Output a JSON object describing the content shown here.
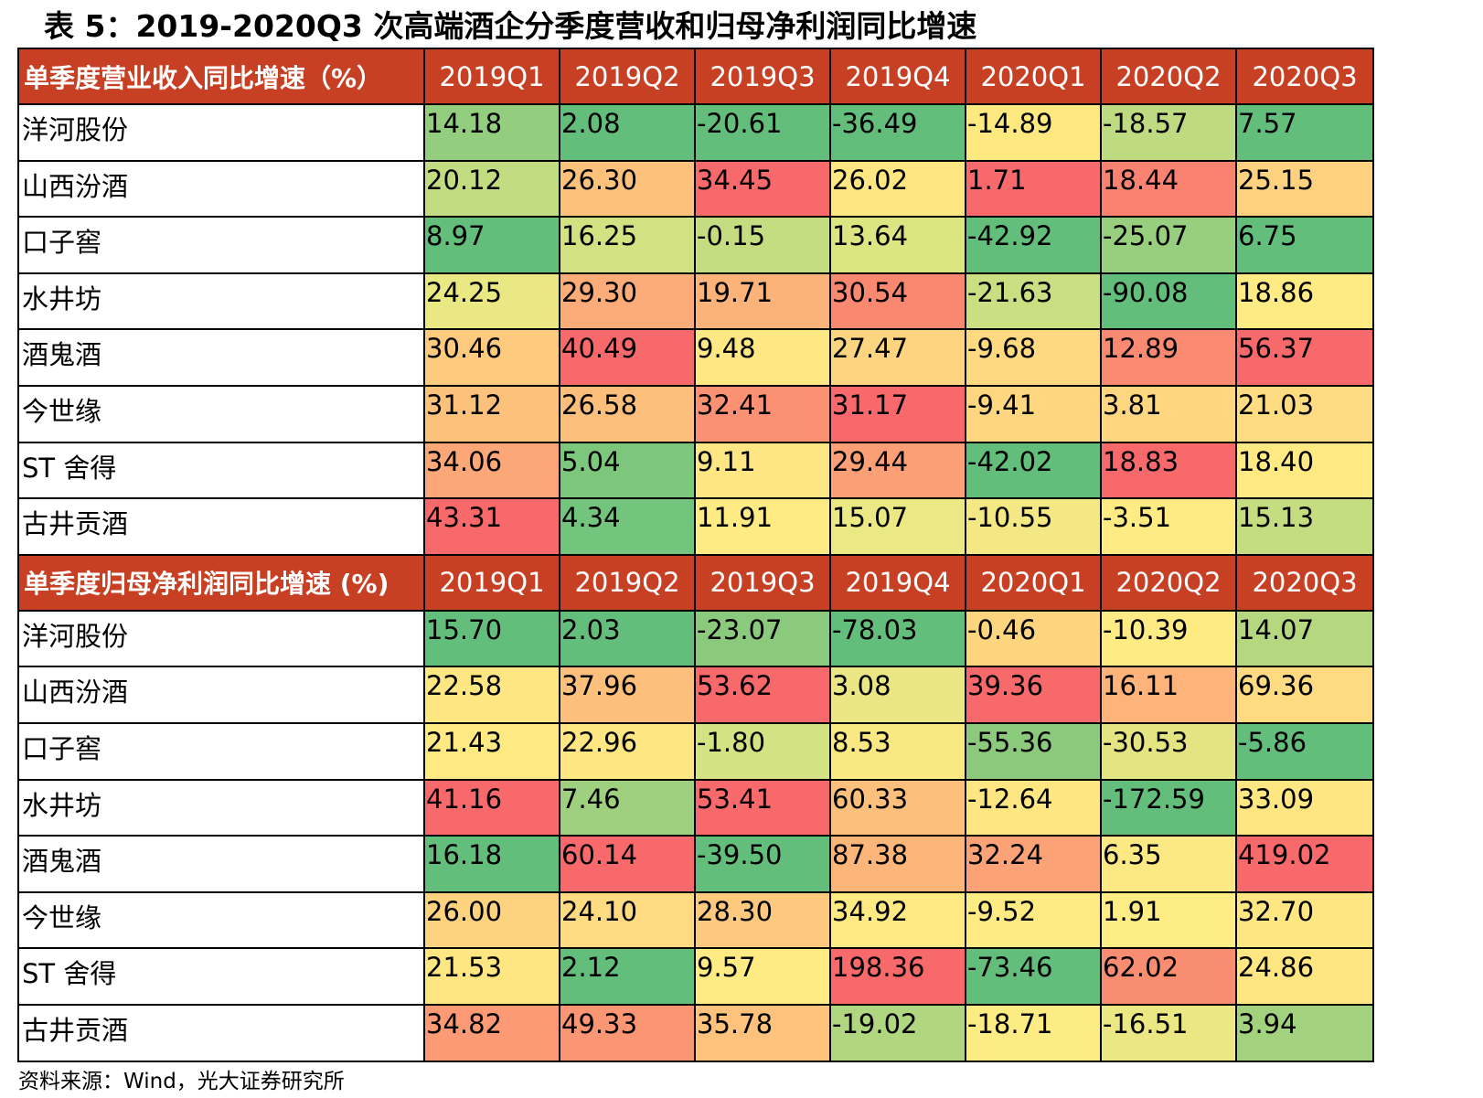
{
  "title": "表 5：2019-2020Q3 次高端酒企分季度营收和归母净利润同比增速",
  "source": "资料来源：Wind，光大证券研究所",
  "colors": {
    "header_bg": "#c84024",
    "header_text": "#ffffff",
    "scale_low": "#63be7b",
    "scale_mid": "#ffeb84",
    "scale_high": "#f8696b"
  },
  "chart_data": {
    "type": "table",
    "color_scale": "per-column green-yellow-red (low to high)",
    "columns": [
      "2019Q1",
      "2019Q2",
      "2019Q3",
      "2019Q4",
      "2020Q1",
      "2020Q2",
      "2020Q3"
    ],
    "sections": [
      {
        "header": "单季度营业收入同比增速（%）",
        "rows": [
          {
            "name": "洋河股份",
            "values": [
              "14.18",
              "2.08",
              "-20.61",
              "-36.49",
              "-14.89",
              "-18.57",
              "7.57"
            ]
          },
          {
            "name": "山西汾酒",
            "values": [
              "20.12",
              "26.30",
              "34.45",
              "26.02",
              "1.71",
              "18.44",
              "25.15"
            ]
          },
          {
            "name": "口子窖",
            "values": [
              "8.97",
              "16.25",
              "-0.15",
              "13.64",
              "-42.92",
              "-25.07",
              "6.75"
            ]
          },
          {
            "name": "水井坊",
            "values": [
              "24.25",
              "29.30",
              "19.71",
              "30.54",
              "-21.63",
              "-90.08",
              "18.86"
            ]
          },
          {
            "name": "酒鬼酒",
            "values": [
              "30.46",
              "40.49",
              "9.48",
              "27.47",
              "-9.68",
              "12.89",
              "56.37"
            ]
          },
          {
            "name": "今世缘",
            "values": [
              "31.12",
              "26.58",
              "32.41",
              "31.17",
              "-9.41",
              "3.81",
              "21.03"
            ]
          },
          {
            "name": "ST 舍得",
            "values": [
              "34.06",
              "5.04",
              "9.11",
              "29.44",
              "-42.02",
              "18.83",
              "18.40"
            ]
          },
          {
            "name": "古井贡酒",
            "values": [
              "43.31",
              "4.34",
              "11.91",
              "15.07",
              "-10.55",
              "-3.51",
              "15.13"
            ]
          }
        ]
      },
      {
        "header": "单季度归母净利润同比增速 (%)",
        "rows": [
          {
            "name": "洋河股份",
            "values": [
              "15.70",
              "2.03",
              "-23.07",
              "-78.03",
              "-0.46",
              "-10.39",
              "14.07"
            ]
          },
          {
            "name": "山西汾酒",
            "values": [
              "22.58",
              "37.96",
              "53.62",
              "3.08",
              "39.36",
              "16.11",
              "69.36"
            ]
          },
          {
            "name": "口子窖",
            "values": [
              "21.43",
              "22.96",
              "-1.80",
              "8.53",
              "-55.36",
              "-30.53",
              "-5.86"
            ]
          },
          {
            "name": "水井坊",
            "values": [
              "41.16",
              "7.46",
              "53.41",
              "60.33",
              "-12.64",
              "-172.59",
              "33.09"
            ]
          },
          {
            "name": "酒鬼酒",
            "values": [
              "16.18",
              "60.14",
              "-39.50",
              "87.38",
              "32.24",
              "6.35",
              "419.02"
            ]
          },
          {
            "name": "今世缘",
            "values": [
              "26.00",
              "24.10",
              "28.30",
              "34.92",
              "-9.52",
              "1.91",
              "32.70"
            ]
          },
          {
            "name": "ST 舍得",
            "values": [
              "21.53",
              "2.12",
              "9.57",
              "198.36",
              "-73.46",
              "62.02",
              "24.86"
            ]
          },
          {
            "name": "古井贡酒",
            "values": [
              "34.82",
              "49.33",
              "35.78",
              "-19.02",
              "-18.71",
              "-16.51",
              "3.94"
            ]
          }
        ]
      }
    ],
    "cell_colors": [
      [
        [
          "#93cd7e",
          "#63be7b",
          "#63be7b",
          "#63be7b",
          "#fde980",
          "#bedb82",
          "#63be7b"
        ],
        [
          "#c1dc81",
          "#fcc27c",
          "#f8696b",
          "#fee783",
          "#f8696b",
          "#f98370",
          "#fdd17f"
        ],
        [
          "#63be7b",
          "#d2e282",
          "#c4dd81",
          "#dde482",
          "#63be7b",
          "#98cf7e",
          "#63be7b"
        ],
        [
          "#e9e883",
          "#fbac78",
          "#fbb379",
          "#f98870",
          "#c9df81",
          "#63be7b",
          "#ffeb84"
        ],
        [
          "#fdca7e",
          "#f8696b",
          "#fde883",
          "#fdd47f",
          "#fed980",
          "#f98a71",
          "#f8696b"
        ],
        [
          "#fcc27c",
          "#fcbf7b",
          "#fa9173",
          "#f8696b",
          "#fed680",
          "#fed680",
          "#ffdc81"
        ],
        [
          "#fba777",
          "#7dc77d",
          "#fde683",
          "#fba076",
          "#63be7b",
          "#f8696b",
          "#ffe983"
        ],
        [
          "#f8696b",
          "#73c47c",
          "#feeb84",
          "#ebe983",
          "#f3e883",
          "#ffeb84",
          "#c4dd81"
        ]
      ],
      [
        [
          "#63be7b",
          "#63be7b",
          "#8bca7d",
          "#63be7b",
          "#fed57f",
          "#ffeb84",
          "#b4d780"
        ],
        [
          "#fee782",
          "#fdc07c",
          "#f8696b",
          "#e9e683",
          "#f8696b",
          "#fdb37a",
          "#fedb81"
        ],
        [
          "#fee983",
          "#fee783",
          "#d3e282",
          "#fae983",
          "#8bca7d",
          "#e4e482",
          "#63be7b"
        ],
        [
          "#f8696b",
          "#9ed07f",
          "#f8696b",
          "#fdc07c",
          "#fee783",
          "#63be7b",
          "#fee783"
        ],
        [
          "#63be7b",
          "#f8696b",
          "#63be7b",
          "#fcb679",
          "#fba377",
          "#fde983",
          "#f8696b"
        ],
        [
          "#fdd37f",
          "#feda80",
          "#fdc97e",
          "#fee983",
          "#feeb84",
          "#feec84",
          "#fee783"
        ],
        [
          "#fee683",
          "#63be7b",
          "#feeb84",
          "#f8696b",
          "#63be7b",
          "#f98d72",
          "#fee683"
        ],
        [
          "#fb9a75",
          "#fa9673",
          "#fdc27c",
          "#b0d680",
          "#fdeb83",
          "#ebe783",
          "#a3d27f"
        ]
      ]
    ]
  }
}
